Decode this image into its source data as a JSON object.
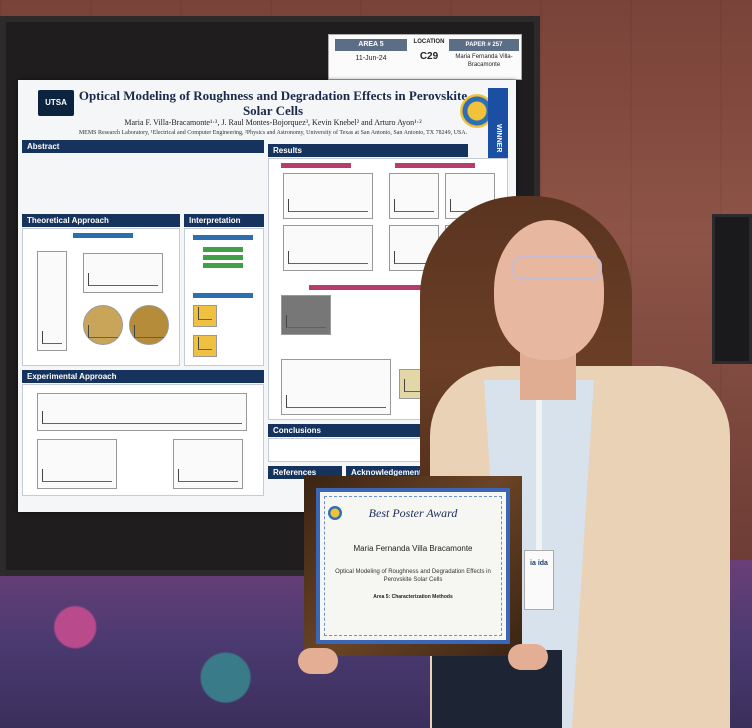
{
  "placard": {
    "area": "AREA 5",
    "date": "11-Jun-24",
    "location_label": "LOCATION",
    "location": "C29",
    "paper": "PAPER # 257",
    "author": "Maria Fernanda Villa-Bracamonte"
  },
  "poster": {
    "title": "Optical Modeling of Roughness and Degradation Effects in Perovskite Solar Cells",
    "authors": "Maria F. Villa-Bracamonte¹·³, J. Raul Montes-Bojorquez³, Kevin Knebel² and Arturo Ayon¹·²",
    "affiliation": "MEMS Research Laboratory, ¹Electrical and Computer Engineering, ²Physics and Astronomy, University of Texas at San Antonio, San Antonio, TX 78249, USA.",
    "logo": "UTSA",
    "ribbon": "WINNER",
    "sections": {
      "abstract": "Abstract",
      "results": "Results",
      "theoretical": "Theoretical Approach",
      "interpretation": "Interpretation",
      "experimental": "Experimental Approach",
      "conclusions": "Conclusions",
      "references": "References",
      "acknowledgements": "Acknowledgements"
    }
  },
  "certificate": {
    "title": "Best Poster Award",
    "name": "Maria Fernanda Villa Bracamonte",
    "paper": "Optical Modeling of Roughness and Degradation Effects in Perovskite Solar Cells",
    "area": "Area 5: Characterization Methods"
  },
  "badge": {
    "text": "ia ida"
  }
}
